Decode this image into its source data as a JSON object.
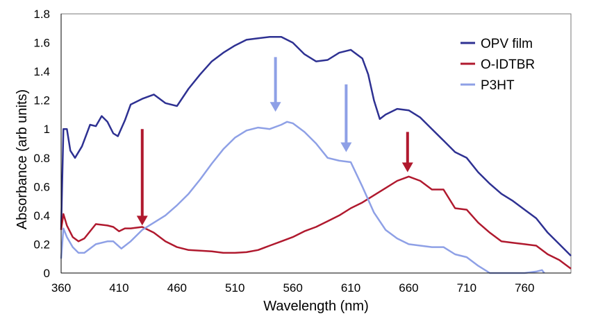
{
  "chart_data": {
    "type": "line",
    "xlabel": "Wavelength (nm)",
    "ylabel": "Absorbance (arb units)",
    "xlim": [
      360,
      800
    ],
    "ylim": [
      0,
      1.8
    ],
    "xticks": [
      360,
      410,
      460,
      510,
      560,
      610,
      660,
      710,
      760
    ],
    "yticks": [
      0,
      0.2,
      0.4,
      0.6,
      0.8,
      1,
      1.2,
      1.4,
      1.6,
      1.8
    ],
    "ytick_labels": [
      "0",
      "0.2",
      "0.4",
      "0.6",
      "0.8",
      "1",
      "1.2",
      "1.4",
      "1.6",
      "1.8"
    ],
    "grid": false,
    "legend_position": "top-right",
    "series": [
      {
        "name": "OPV film",
        "color": "#2e3192",
        "x": [
          360,
          362,
          365,
          368,
          372,
          378,
          385,
          390,
          395,
          400,
          405,
          409,
          415,
          420,
          430,
          440,
          450,
          460,
          470,
          480,
          490,
          500,
          510,
          520,
          530,
          540,
          550,
          560,
          570,
          580,
          590,
          600,
          610,
          620,
          625,
          630,
          635,
          640,
          650,
          660,
          670,
          680,
          690,
          700,
          710,
          720,
          730,
          740,
          750,
          760,
          770,
          780,
          790,
          800
        ],
        "y": [
          0.3,
          1.0,
          1.0,
          0.85,
          0.8,
          0.88,
          1.03,
          1.02,
          1.09,
          1.05,
          0.97,
          0.95,
          1.06,
          1.17,
          1.21,
          1.24,
          1.18,
          1.16,
          1.28,
          1.38,
          1.47,
          1.53,
          1.58,
          1.62,
          1.63,
          1.64,
          1.64,
          1.6,
          1.52,
          1.47,
          1.48,
          1.53,
          1.55,
          1.49,
          1.38,
          1.2,
          1.07,
          1.1,
          1.14,
          1.13,
          1.08,
          1.0,
          0.92,
          0.84,
          0.8,
          0.7,
          0.62,
          0.55,
          0.5,
          0.44,
          0.38,
          0.28,
          0.2,
          0.12
        ]
      },
      {
        "name": "O-IDTBR",
        "color": "#b0192e",
        "x": [
          360,
          362,
          365,
          370,
          375,
          380,
          390,
          400,
          405,
          410,
          415,
          420,
          430,
          440,
          450,
          460,
          470,
          480,
          490,
          500,
          510,
          520,
          530,
          540,
          550,
          560,
          570,
          580,
          590,
          600,
          610,
          620,
          630,
          640,
          650,
          660,
          670,
          680,
          690,
          700,
          710,
          720,
          730,
          740,
          750,
          760,
          770,
          780,
          790,
          800
        ],
        "y": [
          0.3,
          0.41,
          0.33,
          0.25,
          0.22,
          0.24,
          0.34,
          0.33,
          0.32,
          0.29,
          0.31,
          0.31,
          0.32,
          0.28,
          0.22,
          0.18,
          0.16,
          0.155,
          0.15,
          0.14,
          0.14,
          0.145,
          0.16,
          0.19,
          0.22,
          0.25,
          0.29,
          0.32,
          0.36,
          0.4,
          0.45,
          0.49,
          0.54,
          0.59,
          0.64,
          0.67,
          0.64,
          0.58,
          0.58,
          0.45,
          0.44,
          0.35,
          0.28,
          0.22,
          0.21,
          0.2,
          0.19,
          0.13,
          0.09,
          0.03
        ]
      },
      {
        "name": "P3HT",
        "color": "#8ea0e6",
        "x": [
          360,
          362,
          365,
          370,
          375,
          380,
          390,
          400,
          405,
          412,
          420,
          430,
          440,
          450,
          460,
          470,
          480,
          490,
          500,
          510,
          520,
          530,
          540,
          550,
          555,
          560,
          570,
          580,
          590,
          600,
          610,
          620,
          630,
          640,
          650,
          660,
          670,
          680,
          690,
          700,
          710,
          720,
          730,
          740,
          760,
          770,
          775,
          777
        ],
        "y": [
          0.1,
          0.31,
          0.25,
          0.18,
          0.14,
          0.14,
          0.2,
          0.22,
          0.22,
          0.17,
          0.22,
          0.3,
          0.35,
          0.4,
          0.47,
          0.55,
          0.65,
          0.76,
          0.86,
          0.94,
          0.99,
          1.01,
          1.0,
          1.03,
          1.05,
          1.04,
          0.98,
          0.9,
          0.8,
          0.78,
          0.77,
          0.6,
          0.42,
          0.3,
          0.24,
          0.2,
          0.19,
          0.18,
          0.18,
          0.13,
          0.11,
          0.05,
          0.0,
          0.0,
          0.0,
          0.01,
          0.02,
          0.0
        ]
      }
    ],
    "annotations": [
      {
        "type": "arrow",
        "color": "#b0192e",
        "x": 430,
        "y_from": 1.0,
        "y_to": 0.33
      },
      {
        "type": "arrow",
        "color": "#8ea0e6",
        "x": 545,
        "y_from": 1.5,
        "y_to": 1.12
      },
      {
        "type": "arrow",
        "color": "#8ea0e6",
        "x": 606,
        "y_from": 1.31,
        "y_to": 0.84
      },
      {
        "type": "arrow",
        "color": "#b0192e",
        "x": 659,
        "y_from": 0.98,
        "y_to": 0.7
      }
    ]
  }
}
